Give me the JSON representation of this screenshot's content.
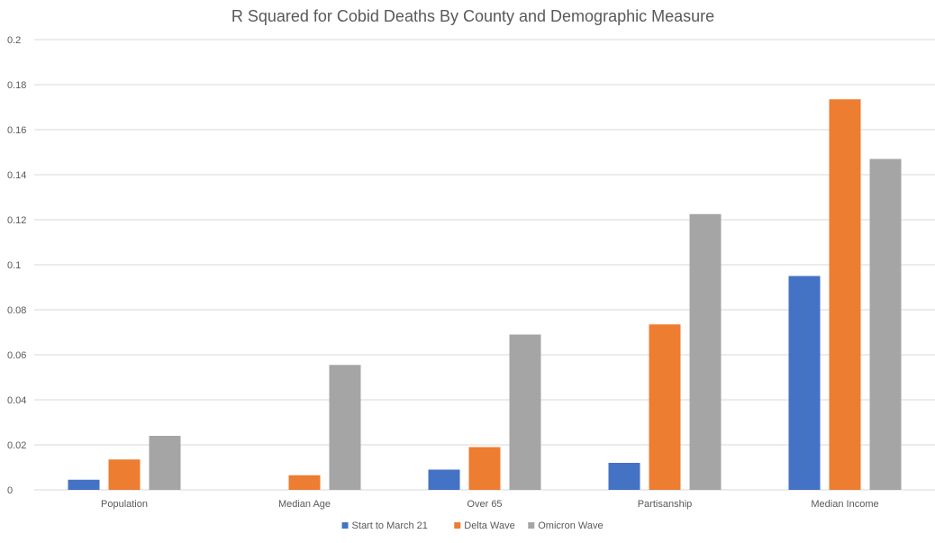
{
  "chart_data": {
    "type": "bar",
    "title": "R Squared for Cobid Deaths By County and Demographic Measure",
    "xlabel": "",
    "ylabel": "",
    "categories": [
      "Population",
      "Median Age",
      "Over 65",
      "Partisanship",
      "Median Income"
    ],
    "series": [
      {
        "name": "Start to March 21",
        "color": "#4472c4",
        "values": [
          0.0045,
          0.0,
          0.009,
          0.012,
          0.095
        ]
      },
      {
        "name": "Delta Wave",
        "color": "#ed7d31",
        "values": [
          0.0135,
          0.0065,
          0.019,
          0.0735,
          0.1735
        ]
      },
      {
        "name": "Omicron Wave",
        "color": "#a5a5a5",
        "values": [
          0.024,
          0.0555,
          0.069,
          0.1225,
          0.147
        ]
      }
    ],
    "ylim": [
      0,
      0.2
    ],
    "yticks": [
      "0",
      "0.02",
      "0.04",
      "0.06",
      "0.08",
      "0.1",
      "0.12",
      "0.14",
      "0.16",
      "0.18",
      "0.2"
    ],
    "ytick_values": [
      0,
      0.02,
      0.04,
      0.06,
      0.08,
      0.1,
      0.12,
      0.14,
      0.16,
      0.18,
      0.2
    ],
    "grid": true,
    "legend_position": "bottom"
  }
}
